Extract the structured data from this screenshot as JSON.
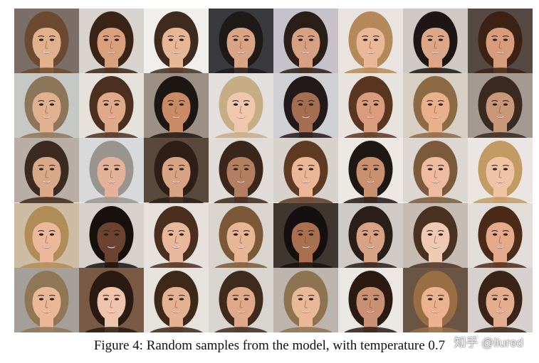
{
  "figure": {
    "caption": "Figure 4: Random samples from the model, with temperature 0.7",
    "watermark": "知乎 @liured",
    "rows": 5,
    "cols": 8,
    "samples": [
      {
        "bg": "#7a6e66",
        "hair": "#6b4a30",
        "skin": "#e2b08c"
      },
      {
        "bg": "#d9d3cd",
        "hair": "#3a2418",
        "skin": "#d9a07c"
      },
      {
        "bg": "#f1efec",
        "hair": "#3e2a1e",
        "skin": "#e6b697"
      },
      {
        "bg": "#3a3a3e",
        "hair": "#1e1a18",
        "skin": "#d9a486"
      },
      {
        "bg": "#c7c2c9",
        "hair": "#2a1e18",
        "skin": "#d8a082"
      },
      {
        "bg": "#e9e4df",
        "hair": "#b48858",
        "skin": "#eab797"
      },
      {
        "bg": "#cfc9c4",
        "hair": "#1e1614",
        "skin": "#dca688"
      },
      {
        "bg": "#564843",
        "hair": "#3b2214",
        "skin": "#d79c7c"
      },
      {
        "bg": "#c6c8c5",
        "hair": "#8c7558",
        "skin": "#e0b191"
      },
      {
        "bg": "#e6e1db",
        "hair": "#4b3020",
        "skin": "#e0a98a"
      },
      {
        "bg": "#9b8f86",
        "hair": "#1d1613",
        "skin": "#c98a66"
      },
      {
        "bg": "#e2dfdc",
        "hair": "#c6ad86",
        "skin": "#efc7ac"
      },
      {
        "bg": "#cfd0d4",
        "hair": "#22191a",
        "skin": "#a46e52"
      },
      {
        "bg": "#e9e3dd",
        "hair": "#5a3620",
        "skin": "#d99c7c"
      },
      {
        "bg": "#d7cfc4",
        "hair": "#8c6a44",
        "skin": "#e8b18c"
      },
      {
        "bg": "#a49a91",
        "hair": "#3a2a20",
        "skin": "#c99878"
      },
      {
        "bg": "#b8aea5",
        "hair": "#3b2a20",
        "skin": "#d9a888"
      },
      {
        "bg": "#d7d9db",
        "hair": "#9a948e",
        "skin": "#e4b29a"
      },
      {
        "bg": "#59483c",
        "hair": "#2e1e16",
        "skin": "#d8a484"
      },
      {
        "bg": "#e1dcd7",
        "hair": "#3a261a",
        "skin": "#b27f60"
      },
      {
        "bg": "#d8d2cc",
        "hair": "#5e3a22",
        "skin": "#ebb598"
      },
      {
        "bg": "#ece9e5",
        "hair": "#1f1714",
        "skin": "#c9906e"
      },
      {
        "bg": "#dcd7d1",
        "hair": "#7a5a3a",
        "skin": "#efbba0"
      },
      {
        "bg": "#ebe6e1",
        "hair": "#c29a64",
        "skin": "#efc3a3"
      },
      {
        "bg": "#cdbba4",
        "hair": "#b08c56",
        "skin": "#ecb89c"
      },
      {
        "bg": "#d6d1cc",
        "hair": "#17110e",
        "skin": "#6b4330"
      },
      {
        "bg": "#e6e1dc",
        "hair": "#4a2e1e",
        "skin": "#e9b79c"
      },
      {
        "bg": "#dad4ce",
        "hair": "#7a5838",
        "skin": "#e7b696"
      },
      {
        "bg": "#403630",
        "hair": "#15100e",
        "skin": "#a8704e"
      },
      {
        "bg": "#cfcac6",
        "hair": "#2a1e18",
        "skin": "#d8a284"
      },
      {
        "bg": "#c6bcb4",
        "hair": "#4a3222",
        "skin": "#f0c9b4"
      },
      {
        "bg": "#e3ddd7",
        "hair": "#4b2a1a",
        "skin": "#e5aa8a"
      },
      {
        "bg": "#a59f99",
        "hair": "#8f7756",
        "skin": "#eab899"
      },
      {
        "bg": "#7a5a44",
        "hair": "#2a1a12",
        "skin": "#efc4ad"
      },
      {
        "bg": "#e6e2de",
        "hair": "#3e2818",
        "skin": "#e5b193"
      },
      {
        "bg": "#d8d4d0",
        "hair": "#3f2a1e",
        "skin": "#e0aa8a"
      },
      {
        "bg": "#bcb4ad",
        "hair": "#8e7350",
        "skin": "#e8b898"
      },
      {
        "bg": "#ebe7e3",
        "hair": "#2a1a12",
        "skin": "#c99073"
      },
      {
        "bg": "#6a5444",
        "hair": "#9a6e44",
        "skin": "#eab28e"
      },
      {
        "bg": "#d6d1cc",
        "hair": "#3a2418",
        "skin": "#e3ae90"
      }
    ]
  }
}
